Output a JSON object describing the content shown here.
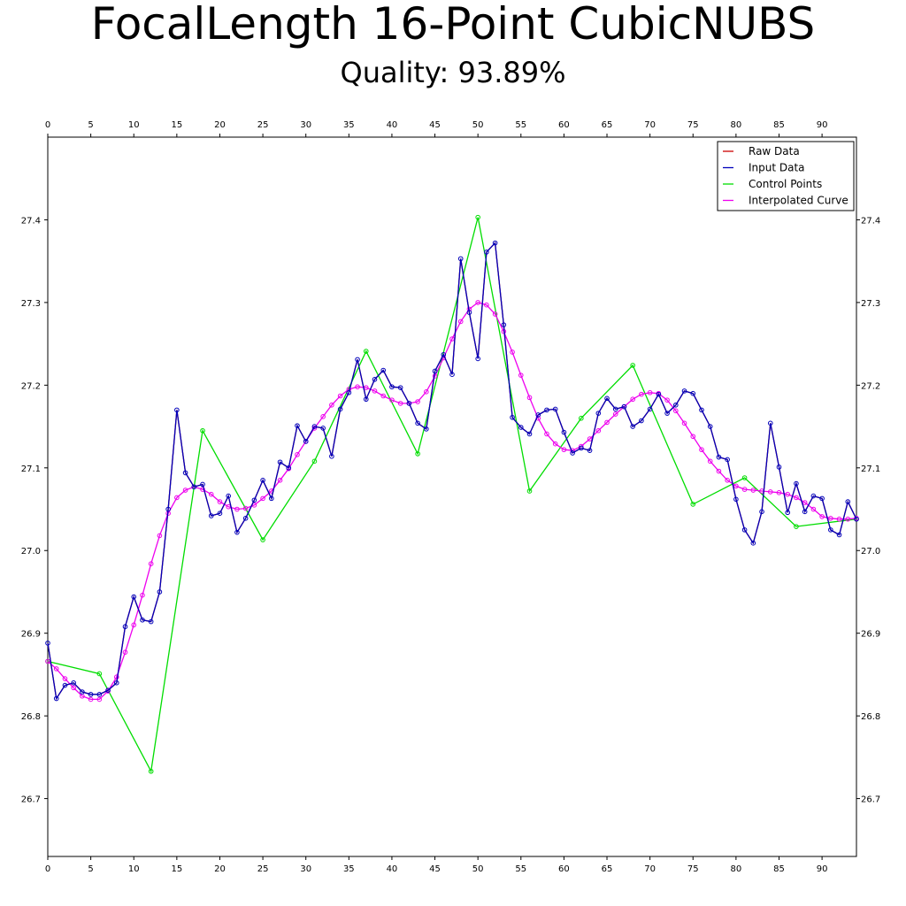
{
  "title": "FocalLength 16-Point CubicNUBS",
  "subtitle": "Quality: 93.89%",
  "chart_data": {
    "type": "line",
    "xlim": [
      0,
      94
    ],
    "ylim": [
      26.63,
      27.5
    ],
    "x_ticks": [
      0,
      5,
      10,
      15,
      20,
      25,
      30,
      35,
      40,
      45,
      50,
      55,
      60,
      65,
      70,
      75,
      80,
      85,
      90
    ],
    "y_ticks": [
      "26.7",
      "26.8",
      "26.9",
      "27.0",
      "27.1",
      "27.2",
      "27.3",
      "27.4"
    ],
    "legend_position": "top-right",
    "grid": false,
    "series": [
      {
        "name": "Raw Data",
        "color": "#cc0000",
        "markers": false,
        "x": [
          0,
          1,
          2,
          3,
          4,
          5,
          6,
          7,
          8,
          9,
          10,
          11,
          12,
          13,
          14,
          15,
          16,
          17,
          18,
          19,
          20,
          21,
          22,
          23,
          24,
          25,
          26,
          27,
          28,
          29,
          30,
          31,
          32,
          33,
          34,
          35,
          36,
          37,
          38,
          39,
          40,
          41,
          42,
          43,
          44,
          45,
          46,
          47,
          48,
          49,
          50,
          51,
          52,
          53,
          54,
          55,
          56,
          57,
          58,
          59,
          60,
          61,
          62,
          63,
          64,
          65,
          66,
          67,
          68,
          69,
          70,
          71,
          72,
          73,
          74,
          75,
          76,
          77,
          78,
          79,
          80,
          81,
          82,
          83,
          84,
          85,
          86,
          87,
          88,
          89,
          90,
          91,
          92,
          93,
          94
        ],
        "y": [
          26.888,
          26.821,
          26.837,
          26.84,
          26.829,
          26.826,
          26.826,
          26.831,
          26.84,
          26.908,
          26.944,
          26.916,
          26.914,
          26.95,
          27.05,
          27.17,
          27.094,
          27.077,
          27.08,
          27.042,
          27.045,
          27.066,
          27.022,
          27.039,
          27.061,
          27.085,
          27.063,
          27.107,
          27.1,
          27.151,
          27.132,
          27.15,
          27.148,
          27.114,
          27.171,
          27.191,
          27.231,
          27.183,
          27.207,
          27.218,
          27.198,
          27.197,
          27.178,
          27.154,
          27.147,
          27.217,
          27.237,
          27.213,
          27.353,
          27.288,
          27.232,
          27.361,
          27.372,
          27.273,
          27.161,
          27.149,
          27.141,
          27.164,
          27.17,
          27.171,
          27.143,
          27.118,
          27.124,
          27.121,
          27.166,
          27.184,
          27.171,
          27.174,
          27.15,
          27.157,
          27.171,
          27.189,
          27.166,
          27.176,
          27.193,
          27.19,
          27.17,
          27.15,
          27.113,
          27.11,
          27.062,
          27.025,
          27.009,
          27.047,
          27.154,
          27.101,
          27.046,
          27.081,
          27.047,
          27.066,
          27.063,
          27.025,
          27.019,
          27.059,
          27.038
        ]
      },
      {
        "name": "Input Data",
        "color": "#0000bb",
        "markers": true,
        "x": [
          0,
          1,
          2,
          3,
          4,
          5,
          6,
          7,
          8,
          9,
          10,
          11,
          12,
          13,
          14,
          15,
          16,
          17,
          18,
          19,
          20,
          21,
          22,
          23,
          24,
          25,
          26,
          27,
          28,
          29,
          30,
          31,
          32,
          33,
          34,
          35,
          36,
          37,
          38,
          39,
          40,
          41,
          42,
          43,
          44,
          45,
          46,
          47,
          48,
          49,
          50,
          51,
          52,
          53,
          54,
          55,
          56,
          57,
          58,
          59,
          60,
          61,
          62,
          63,
          64,
          65,
          66,
          67,
          68,
          69,
          70,
          71,
          72,
          73,
          74,
          75,
          76,
          77,
          78,
          79,
          80,
          81,
          82,
          83,
          84,
          85,
          86,
          87,
          88,
          89,
          90,
          91,
          92,
          93,
          94
        ],
        "y": [
          26.888,
          26.821,
          26.837,
          26.84,
          26.829,
          26.826,
          26.826,
          26.831,
          26.84,
          26.908,
          26.944,
          26.916,
          26.914,
          26.95,
          27.05,
          27.17,
          27.094,
          27.077,
          27.08,
          27.042,
          27.045,
          27.066,
          27.022,
          27.039,
          27.061,
          27.085,
          27.063,
          27.107,
          27.1,
          27.151,
          27.132,
          27.15,
          27.148,
          27.114,
          27.171,
          27.191,
          27.231,
          27.183,
          27.207,
          27.218,
          27.198,
          27.197,
          27.178,
          27.154,
          27.147,
          27.217,
          27.237,
          27.213,
          27.353,
          27.288,
          27.232,
          27.361,
          27.372,
          27.273,
          27.161,
          27.149,
          27.141,
          27.164,
          27.17,
          27.171,
          27.143,
          27.118,
          27.124,
          27.121,
          27.166,
          27.184,
          27.171,
          27.174,
          27.15,
          27.157,
          27.171,
          27.189,
          27.166,
          27.176,
          27.193,
          27.19,
          27.17,
          27.15,
          27.113,
          27.11,
          27.062,
          27.025,
          27.009,
          27.047,
          27.154,
          27.101,
          27.046,
          27.081,
          27.047,
          27.066,
          27.063,
          27.025,
          27.019,
          27.059,
          27.038
        ]
      },
      {
        "name": "Control Points",
        "color": "#00dd00",
        "markers": true,
        "x": [
          0,
          6,
          12,
          18,
          25,
          31,
          37,
          43,
          50,
          56,
          62,
          68,
          75,
          81,
          87,
          94
        ],
        "y": [
          26.866,
          26.851,
          26.733,
          27.145,
          27.013,
          27.108,
          27.241,
          27.117,
          27.403,
          27.072,
          27.16,
          27.224,
          27.056,
          27.088,
          27.029,
          27.038
        ]
      },
      {
        "name": "Interpolated Curve",
        "color": "#ee00ee",
        "markers": true,
        "x": [
          0,
          1,
          2,
          3,
          4,
          5,
          6,
          7,
          8,
          9,
          10,
          11,
          12,
          13,
          14,
          15,
          16,
          17,
          18,
          19,
          20,
          21,
          22,
          23,
          24,
          25,
          26,
          27,
          28,
          29,
          30,
          31,
          32,
          33,
          34,
          35,
          36,
          37,
          38,
          39,
          40,
          41,
          42,
          43,
          44,
          45,
          46,
          47,
          48,
          49,
          50,
          51,
          52,
          53,
          54,
          55,
          56,
          57,
          58,
          59,
          60,
          61,
          62,
          63,
          64,
          65,
          66,
          67,
          68,
          69,
          70,
          71,
          72,
          73,
          74,
          75,
          76,
          77,
          78,
          79,
          80,
          81,
          82,
          83,
          84,
          85,
          86,
          87,
          88,
          89,
          90,
          91,
          92,
          93,
          94
        ],
        "y": [
          26.866,
          26.857,
          26.845,
          26.834,
          26.824,
          26.82,
          26.82,
          26.83,
          26.847,
          26.877,
          26.91,
          26.946,
          26.984,
          27.018,
          27.045,
          27.064,
          27.073,
          27.077,
          27.074,
          27.068,
          27.059,
          27.053,
          27.05,
          27.051,
          27.055,
          27.063,
          27.072,
          27.085,
          27.099,
          27.116,
          27.132,
          27.148,
          27.162,
          27.176,
          27.187,
          27.195,
          27.198,
          27.197,
          27.193,
          27.187,
          27.182,
          27.178,
          27.178,
          27.18,
          27.192,
          27.211,
          27.233,
          27.256,
          27.277,
          27.292,
          27.3,
          27.297,
          27.286,
          27.265,
          27.24,
          27.212,
          27.185,
          27.16,
          27.141,
          27.129,
          27.122,
          27.121,
          27.126,
          27.135,
          27.145,
          27.155,
          27.165,
          27.174,
          27.183,
          27.189,
          27.191,
          27.19,
          27.182,
          27.169,
          27.154,
          27.138,
          27.122,
          27.108,
          27.096,
          27.085,
          27.078,
          27.074,
          27.073,
          27.072,
          27.071,
          27.07,
          27.068,
          27.064,
          27.058,
          27.05,
          27.041,
          27.039,
          27.038,
          27.038,
          27.039
        ]
      }
    ]
  }
}
